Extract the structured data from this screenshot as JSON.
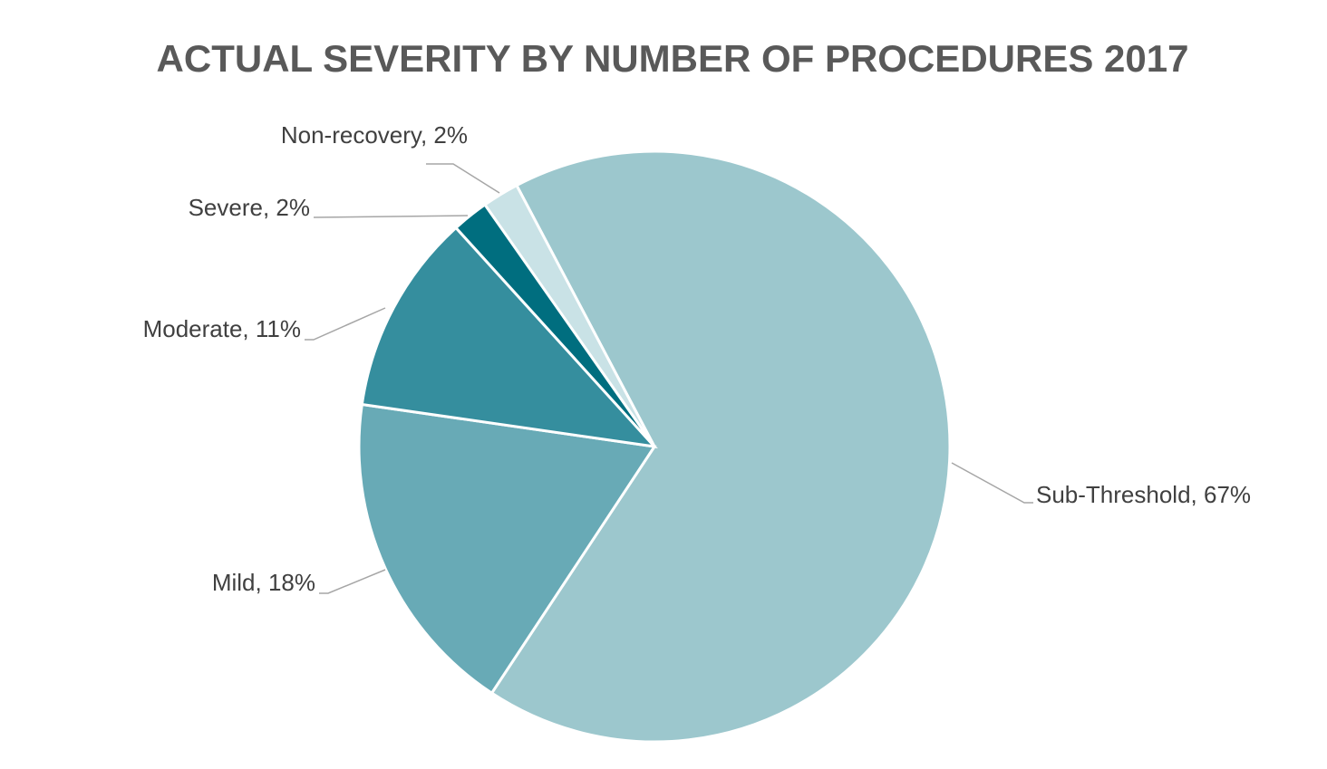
{
  "chart_data": {
    "type": "pie",
    "title": "ACTUAL SEVERITY BY NUMBER OF PROCEDURES 2017",
    "values": [
      67,
      18,
      11,
      2,
      2
    ],
    "value_labels": [
      "Sub-Threshold, 67%",
      "Mild, 18%",
      "Moderate, 11%",
      "Severe, 2%",
      "Non-recovery, 2%"
    ],
    "colors": [
      "#9cc7cd",
      "#68aab6",
      "#358e9e",
      "#006e7f",
      "#c9e2e6"
    ]
  }
}
